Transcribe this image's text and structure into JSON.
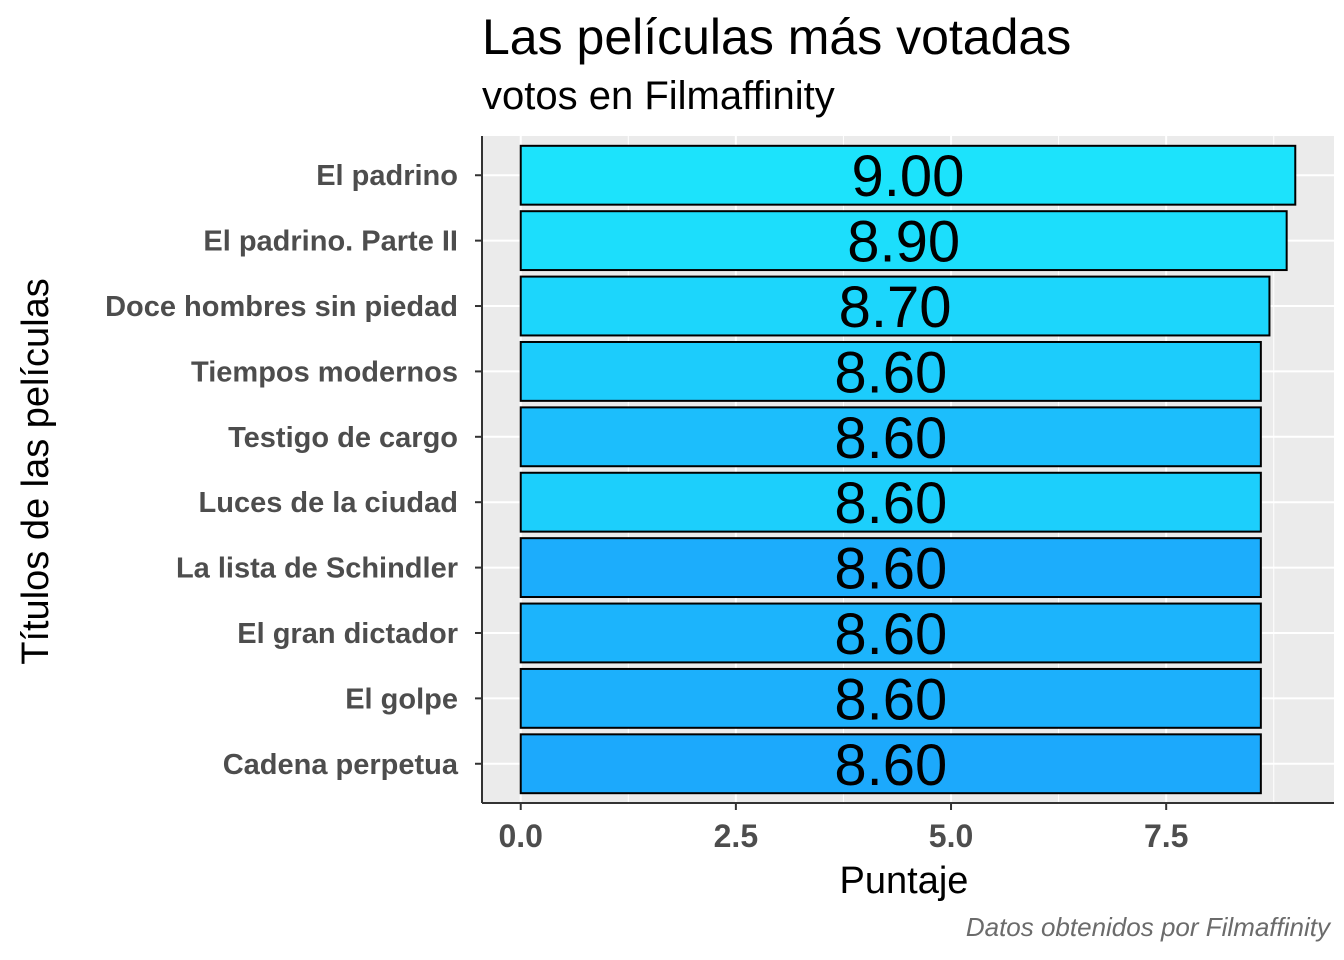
{
  "chart_data": {
    "type": "bar",
    "orientation": "horizontal",
    "title": "Las películas más votadas",
    "subtitle": "votos en Filmaffinity",
    "caption": "Datos obtenidos por Filmaffinity",
    "xlabel": "Puntaje",
    "ylabel": "Títulos de las películas",
    "categories": [
      "El padrino",
      "El padrino. Parte II",
      "Doce hombres sin piedad",
      "Tiempos modernos",
      "Testigo de cargo",
      "Luces de la ciudad",
      "La lista de Schindler",
      "El gran dictador",
      "El golpe",
      "Cadena perpetua"
    ],
    "values": [
      9.0,
      8.9,
      8.7,
      8.6,
      8.6,
      8.6,
      8.6,
      8.6,
      8.6,
      8.6
    ],
    "data_labels": [
      "9.00",
      "8.90",
      "8.70",
      "8.60",
      "8.60",
      "8.60",
      "8.60",
      "8.60",
      "8.60",
      "8.60"
    ],
    "bar_colors": [
      "#1ce3fc",
      "#1cdefc",
      "#1cd6fc",
      "#1cccfc",
      "#1cbefc",
      "#1ccffc",
      "#1cadfc",
      "#1cb4fc",
      "#1cb0fc",
      "#1ca9fc"
    ],
    "x_ticks": [
      "0.0",
      "2.5",
      "5.0",
      "7.5"
    ],
    "x_tick_values": [
      0,
      2.5,
      5,
      7.5
    ],
    "xlim": [
      -0.45,
      9.45
    ],
    "grid": true,
    "panel_background": "#ebebeb",
    "gridline_color": "#ffffff",
    "bar_outline": "#000000"
  }
}
